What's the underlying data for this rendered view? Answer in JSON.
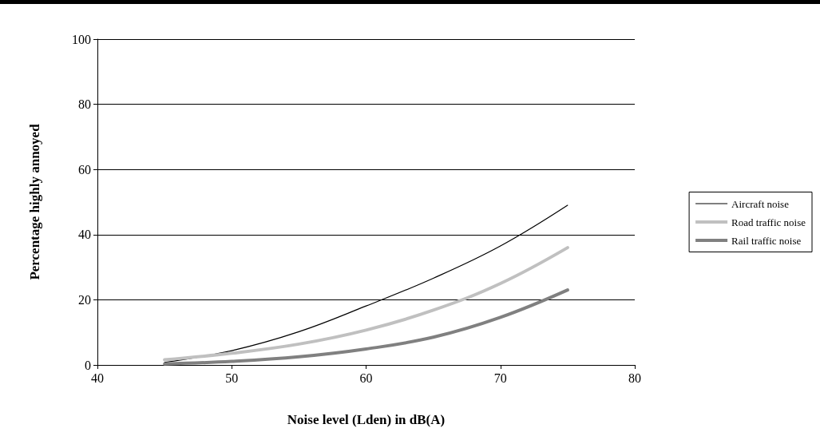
{
  "chart_data": {
    "type": "line",
    "xlabel": "Noise level (Lden) in dB(A)",
    "ylabel": "Percentage highly annoyed",
    "x": [
      45,
      50,
      55,
      60,
      65,
      70,
      75
    ],
    "series": [
      {
        "name": "Aircraft noise",
        "color": "#000000",
        "values": [
          0.8,
          4.4,
          10.2,
          18.1,
          26.6,
          36.5,
          49
        ]
      },
      {
        "name": "Road traffic noise",
        "color": "#c0c0c0",
        "values": [
          1.6,
          3.6,
          6.4,
          10.7,
          16.8,
          25,
          36
        ]
      },
      {
        "name": "Rail traffic noise",
        "color": "#808080",
        "values": [
          0.3,
          1.1,
          2.5,
          4.9,
          8.5,
          14.6,
          23
        ]
      }
    ],
    "xlim": [
      40,
      80
    ],
    "xticks": [
      40,
      50,
      60,
      70,
      80
    ],
    "ylim": [
      0,
      100
    ],
    "yticks": [
      0,
      20,
      40,
      60,
      80,
      100
    ],
    "grid": "y",
    "legend": "right",
    "marker": "none",
    "line_style": "solid"
  }
}
